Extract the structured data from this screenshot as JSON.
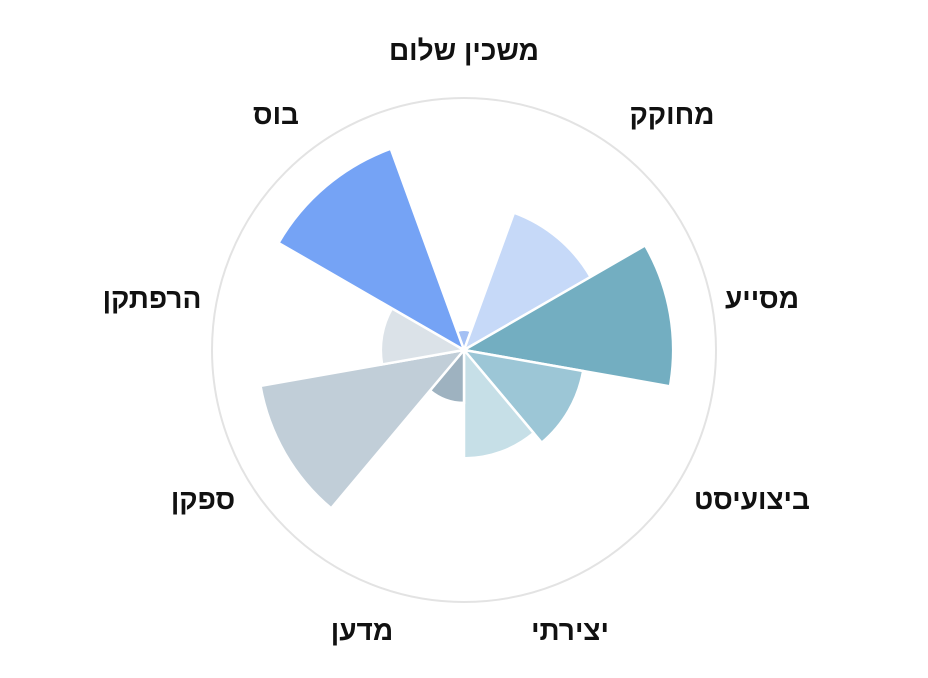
{
  "chart_data": {
    "type": "polar-area",
    "title": "",
    "grid": false,
    "legend": "none",
    "rmax": 100,
    "categories": [
      "משכין שלום",
      "מחוקק",
      "מסייע",
      "ביצועיסט",
      "יצירתי",
      "מדען",
      "ספקן",
      "הרפתקן",
      "בוס"
    ],
    "values": [
      8,
      58,
      83,
      48,
      43,
      21,
      82,
      33,
      85
    ],
    "colors": [
      "#a4c0f4",
      "#c6d9f8",
      "#73aec1",
      "#9cc6d6",
      "#c6dfe7",
      "#9eb2c0",
      "#c1ced8",
      "#dbe2e8",
      "#75a3f5"
    ]
  }
}
